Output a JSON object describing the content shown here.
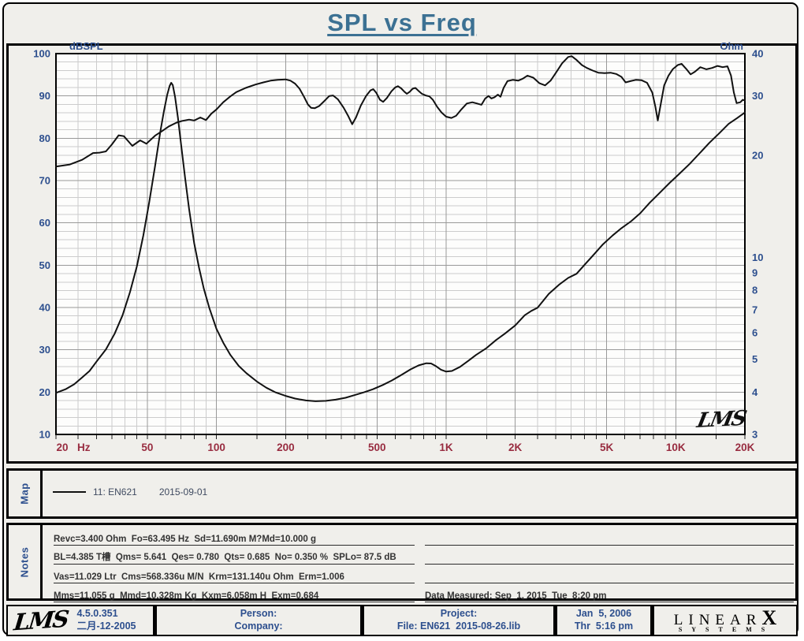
{
  "title": "SPL vs Freq",
  "colors": {
    "page_bg": "#f0efeb",
    "plot_bg": "#fdfdfc",
    "title_c": "#3c7193",
    "navy": "#2d4f8e",
    "maroon": "#982c40",
    "grid_minor": "#cccccc",
    "grid_major": "#999999",
    "curve": "#111111",
    "text_dark": "#333333",
    "legend_text": "#3f4a60"
  },
  "chart_data": {
    "type": "line",
    "title": "SPL vs Freq",
    "x_axis": {
      "scale": "log",
      "min": 20,
      "max": 20000,
      "unit": "Hz",
      "tick_labels": [
        [
          20,
          "20"
        ],
        [
          50,
          "50"
        ],
        [
          100,
          "100"
        ],
        [
          200,
          "200"
        ],
        [
          500,
          "500"
        ],
        [
          1000,
          "1K"
        ],
        [
          2000,
          "2K"
        ],
        [
          5000,
          "5K"
        ],
        [
          10000,
          "10K"
        ],
        [
          20000,
          "20K"
        ]
      ]
    },
    "left_axis": {
      "label": "dBSPL",
      "min": 10,
      "max": 100,
      "major_step": 10,
      "minor_step": 2
    },
    "right_axis": {
      "label": "Ohm",
      "scale": "log",
      "min": 3,
      "max": 40,
      "ticks": [
        40,
        30,
        20,
        10,
        9,
        8,
        7,
        6,
        5,
        4,
        3
      ]
    },
    "grid": {
      "major_per_decade": [
        1,
        2,
        5
      ],
      "minor_per_decade": [
        1.5,
        2.5,
        3,
        3.5,
        4,
        4.5,
        6,
        7,
        8,
        9
      ]
    },
    "watermark": "LMS",
    "series": [
      {
        "name": "SPL",
        "axis": "left",
        "points": [
          [
            20,
            73.3
          ],
          [
            23,
            73.8
          ],
          [
            26,
            74.9
          ],
          [
            29,
            76.5
          ],
          [
            31,
            76.6
          ],
          [
            33,
            76.9
          ],
          [
            35,
            78.5
          ],
          [
            37.5,
            80.7
          ],
          [
            39.5,
            80.5
          ],
          [
            43,
            78.2
          ],
          [
            46.5,
            79.5
          ],
          [
            49.5,
            78.7
          ],
          [
            54,
            80.6
          ],
          [
            58,
            81.7
          ],
          [
            62,
            82.8
          ],
          [
            67,
            83.7
          ],
          [
            71,
            84.1
          ],
          [
            76,
            84.4
          ],
          [
            80,
            84.2
          ],
          [
            85,
            84.9
          ],
          [
            90,
            84.3
          ],
          [
            95,
            85.8
          ],
          [
            100,
            86.8
          ],
          [
            107,
            88.5
          ],
          [
            115,
            89.9
          ],
          [
            122,
            90.9
          ],
          [
            134,
            91.9
          ],
          [
            148,
            92.7
          ],
          [
            160,
            93.2
          ],
          [
            172,
            93.6
          ],
          [
            185,
            93.8
          ],
          [
            200,
            93.9
          ],
          [
            210,
            93.6
          ],
          [
            220,
            92.9
          ],
          [
            230,
            91.7
          ],
          [
            240,
            89.9
          ],
          [
            250,
            88.0
          ],
          [
            258,
            87.2
          ],
          [
            268,
            87.1
          ],
          [
            280,
            87.6
          ],
          [
            295,
            88.8
          ],
          [
            310,
            90.0
          ],
          [
            322,
            90.1
          ],
          [
            338,
            89.2
          ],
          [
            358,
            87.2
          ],
          [
            375,
            85.2
          ],
          [
            390,
            83.3
          ],
          [
            405,
            84.9
          ],
          [
            425,
            87.7
          ],
          [
            448,
            90.0
          ],
          [
            468,
            91.3
          ],
          [
            482,
            91.6
          ],
          [
            497,
            90.7
          ],
          [
            515,
            89.1
          ],
          [
            532,
            88.6
          ],
          [
            552,
            89.5
          ],
          [
            578,
            91.1
          ],
          [
            600,
            92.0
          ],
          [
            617,
            92.3
          ],
          [
            637,
            91.8
          ],
          [
            658,
            91.0
          ],
          [
            675,
            90.5
          ],
          [
            695,
            91.0
          ],
          [
            715,
            91.7
          ],
          [
            735,
            91.9
          ],
          [
            758,
            91.2
          ],
          [
            785,
            90.5
          ],
          [
            815,
            90.1
          ],
          [
            845,
            89.9
          ],
          [
            875,
            89.1
          ],
          [
            915,
            87.4
          ],
          [
            955,
            86.1
          ],
          [
            1000,
            85.1
          ],
          [
            1055,
            84.8
          ],
          [
            1105,
            85.3
          ],
          [
            1165,
            86.8
          ],
          [
            1230,
            88.2
          ],
          [
            1300,
            88.5
          ],
          [
            1365,
            88.2
          ],
          [
            1425,
            87.9
          ],
          [
            1480,
            89.4
          ],
          [
            1530,
            90.0
          ],
          [
            1575,
            89.4
          ],
          [
            1625,
            89.7
          ],
          [
            1680,
            90.3
          ],
          [
            1725,
            89.8
          ],
          [
            1780,
            91.9
          ],
          [
            1850,
            93.5
          ],
          [
            1950,
            93.8
          ],
          [
            2060,
            93.6
          ],
          [
            2160,
            94.1
          ],
          [
            2260,
            94.8
          ],
          [
            2400,
            94.3
          ],
          [
            2550,
            93.0
          ],
          [
            2700,
            92.5
          ],
          [
            2850,
            93.6
          ],
          [
            3000,
            95.4
          ],
          [
            3200,
            97.7
          ],
          [
            3400,
            99.2
          ],
          [
            3520,
            99.4
          ],
          [
            3700,
            98.5
          ],
          [
            3900,
            97.3
          ],
          [
            4100,
            96.6
          ],
          [
            4350,
            96.0
          ],
          [
            4600,
            95.5
          ],
          [
            4900,
            95.4
          ],
          [
            5200,
            95.5
          ],
          [
            5500,
            95.2
          ],
          [
            5800,
            94.5
          ],
          [
            6050,
            93.2
          ],
          [
            6350,
            93.5
          ],
          [
            6700,
            93.8
          ],
          [
            7100,
            93.7
          ],
          [
            7500,
            93.1
          ],
          [
            7900,
            90.8
          ],
          [
            8150,
            87.5
          ],
          [
            8350,
            84.2
          ],
          [
            8600,
            88.0
          ],
          [
            8900,
            92.5
          ],
          [
            9300,
            94.8
          ],
          [
            9700,
            96.3
          ],
          [
            10200,
            97.3
          ],
          [
            10600,
            97.6
          ],
          [
            11100,
            96.4
          ],
          [
            11600,
            95.1
          ],
          [
            12100,
            95.7
          ],
          [
            12800,
            96.8
          ],
          [
            13600,
            96.3
          ],
          [
            14400,
            96.6
          ],
          [
            15200,
            97.1
          ],
          [
            16000,
            96.8
          ],
          [
            16800,
            97.0
          ],
          [
            17400,
            94.8
          ],
          [
            17900,
            90.8
          ],
          [
            18400,
            88.3
          ],
          [
            19100,
            88.5
          ],
          [
            19600,
            89.1
          ],
          [
            20000,
            88.9
          ]
        ]
      },
      {
        "name": "Impedance",
        "axis": "right",
        "points": [
          [
            20,
            3.98
          ],
          [
            22,
            4.08
          ],
          [
            24,
            4.22
          ],
          [
            26,
            4.42
          ],
          [
            28,
            4.62
          ],
          [
            30,
            4.92
          ],
          [
            33,
            5.35
          ],
          [
            36,
            5.95
          ],
          [
            39,
            6.75
          ],
          [
            42,
            7.9
          ],
          [
            45,
            9.4
          ],
          [
            48,
            11.6
          ],
          [
            51,
            14.6
          ],
          [
            54,
            18.6
          ],
          [
            57,
            23.6
          ],
          [
            59,
            27.0
          ],
          [
            61,
            30.2
          ],
          [
            62.5,
            32.1
          ],
          [
            63.5,
            32.8
          ],
          [
            64.5,
            32.3
          ],
          [
            66,
            29.8
          ],
          [
            68,
            25.8
          ],
          [
            70,
            21.8
          ],
          [
            73,
            17.2
          ],
          [
            76,
            13.9
          ],
          [
            80,
            11.0
          ],
          [
            84,
            9.3
          ],
          [
            88,
            8.1
          ],
          [
            93,
            7.1
          ],
          [
            100,
            6.15
          ],
          [
            107,
            5.6
          ],
          [
            115,
            5.15
          ],
          [
            125,
            4.78
          ],
          [
            135,
            4.55
          ],
          [
            150,
            4.3
          ],
          [
            165,
            4.12
          ],
          [
            180,
            4.0
          ],
          [
            200,
            3.9
          ],
          [
            220,
            3.83
          ],
          [
            245,
            3.78
          ],
          [
            270,
            3.76
          ],
          [
            300,
            3.77
          ],
          [
            330,
            3.8
          ],
          [
            365,
            3.85
          ],
          [
            400,
            3.92
          ],
          [
            440,
            4.0
          ],
          [
            480,
            4.08
          ],
          [
            530,
            4.2
          ],
          [
            580,
            4.33
          ],
          [
            640,
            4.5
          ],
          [
            700,
            4.67
          ],
          [
            760,
            4.8
          ],
          [
            820,
            4.87
          ],
          [
            860,
            4.86
          ],
          [
            900,
            4.78
          ],
          [
            950,
            4.66
          ],
          [
            1000,
            4.6
          ],
          [
            1060,
            4.62
          ],
          [
            1150,
            4.75
          ],
          [
            1250,
            4.95
          ],
          [
            1350,
            5.15
          ],
          [
            1500,
            5.4
          ],
          [
            1650,
            5.7
          ],
          [
            1800,
            5.95
          ],
          [
            2000,
            6.3
          ],
          [
            2200,
            6.75
          ],
          [
            2350,
            6.95
          ],
          [
            2500,
            7.1
          ],
          [
            2800,
            7.8
          ],
          [
            3100,
            8.3
          ],
          [
            3400,
            8.7
          ],
          [
            3700,
            8.95
          ],
          [
            4000,
            9.5
          ],
          [
            4400,
            10.2
          ],
          [
            4800,
            10.9
          ],
          [
            5300,
            11.6
          ],
          [
            5800,
            12.2
          ],
          [
            6400,
            12.8
          ],
          [
            7000,
            13.5
          ],
          [
            7700,
            14.5
          ],
          [
            8500,
            15.5
          ],
          [
            9400,
            16.6
          ],
          [
            10400,
            17.7
          ],
          [
            11500,
            18.9
          ],
          [
            12700,
            20.3
          ],
          [
            14000,
            21.8
          ],
          [
            15500,
            23.3
          ],
          [
            17000,
            24.8
          ],
          [
            18500,
            25.8
          ],
          [
            20000,
            26.8
          ]
        ]
      }
    ]
  },
  "map_panel": {
    "label": "Map",
    "legend": {
      "text": "11: EN621",
      "date": "2015-09-01"
    }
  },
  "notes_panel": {
    "label": "Notes",
    "left": [
      "Revc=3.400 Ohm  Fo=63.495 Hz  Sd=11.690m M?Md=10.000 g",
      "BL=4.385 T槽  Qms= 5.641  Qes= 0.780  Qts= 0.685  No= 0.350 %  SPLo= 87.5 dB",
      "Vas=11.029 Ltr  Cms=568.336u M/N  Krm=131.140u Ohm  Erm=1.006",
      "Mms=11.055 g  Mmd=10.328m Kg  Kxm=6.058m H  Exm=0.684"
    ],
    "right": [
      "",
      "",
      "",
      "Data Measured: Sep  1, 2015  Tue  8:20 pm"
    ]
  },
  "footer": {
    "lms_logo": "LMS",
    "version": "4.5.0.351",
    "version_date": "二月-12-2005",
    "person_label": "Person:",
    "company_label": "Company:",
    "project_label": "Project:",
    "file_label": "File: EN621  2015-08-26.lib",
    "date": "Jan  5, 2006",
    "time": "Thr  5:16 pm",
    "brand": {
      "linear": "LINEAR",
      "x": "X",
      "systems": "SYSTEMS"
    }
  }
}
